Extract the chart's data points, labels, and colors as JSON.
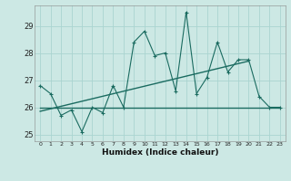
{
  "x": [
    0,
    1,
    2,
    3,
    4,
    5,
    6,
    7,
    8,
    9,
    10,
    11,
    12,
    13,
    14,
    15,
    16,
    17,
    18,
    19,
    20,
    21,
    22,
    23
  ],
  "y": [
    26.8,
    26.5,
    25.7,
    25.9,
    25.1,
    26.0,
    25.8,
    26.8,
    26.0,
    28.4,
    28.8,
    27.9,
    28.0,
    26.6,
    29.5,
    26.5,
    27.1,
    28.4,
    27.3,
    27.75,
    27.75,
    26.4,
    26.0,
    26.0
  ],
  "trend1_x": [
    0,
    23
  ],
  "trend1_y": [
    26.0,
    26.0
  ],
  "trend2_x": [
    0,
    20
  ],
  "trend2_y": [
    25.85,
    27.7
  ],
  "bg_color": "#cce8e4",
  "grid_color": "#aad4d0",
  "line_color": "#1a6b60",
  "xlabel": "Humidex (Indice chaleur)",
  "ylabel": "",
  "xlim": [
    -0.5,
    23.5
  ],
  "ylim": [
    24.75,
    29.75
  ],
  "xticks": [
    0,
    1,
    2,
    3,
    4,
    5,
    6,
    7,
    8,
    9,
    10,
    11,
    12,
    13,
    14,
    15,
    16,
    17,
    18,
    19,
    20,
    21,
    22,
    23
  ],
  "yticks": [
    25,
    26,
    27,
    28,
    29
  ]
}
